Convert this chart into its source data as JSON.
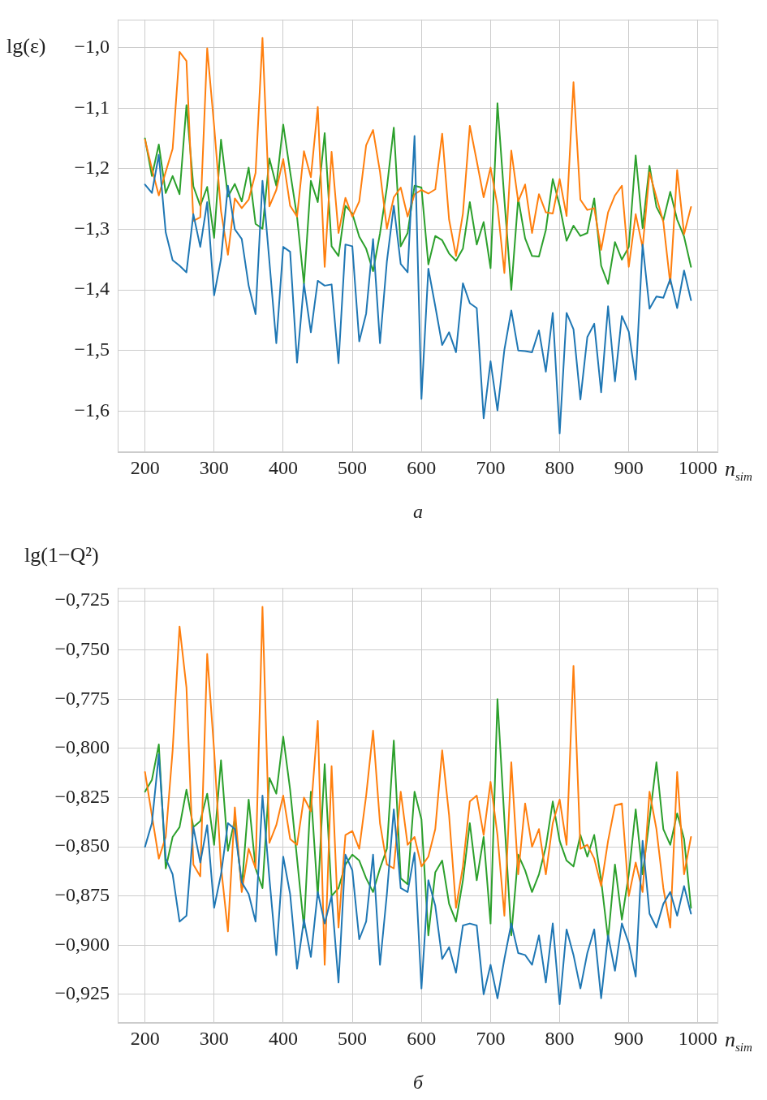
{
  "chart_data": [
    {
      "type": "line",
      "ylabel": "lg(ε)",
      "xlabel": "n$_{sim}$",
      "annotations": [
        "а"
      ],
      "grid": true,
      "marker": "none",
      "x": [
        200,
        210,
        220,
        230,
        240,
        250,
        260,
        270,
        280,
        290,
        300,
        310,
        320,
        330,
        340,
        350,
        360,
        370,
        380,
        390,
        400,
        410,
        420,
        430,
        440,
        450,
        460,
        470,
        480,
        490,
        500,
        510,
        520,
        530,
        540,
        550,
        560,
        570,
        580,
        590,
        600,
        610,
        620,
        630,
        640,
        650,
        660,
        670,
        680,
        690,
        700,
        710,
        720,
        730,
        740,
        750,
        760,
        770,
        780,
        790,
        800,
        810,
        820,
        830,
        840,
        850,
        860,
        870,
        880,
        890,
        900,
        910,
        920,
        930,
        940,
        950,
        960,
        970,
        980,
        990
      ],
      "xlim": [
        160.5,
        1029.5
      ],
      "xticks": [
        200,
        300,
        400,
        500,
        600,
        700,
        800,
        900,
        1000
      ],
      "ylim": [
        -1.668,
        -0.954
      ],
      "yticks": [
        {
          "value": -1.0,
          "label": "−1,0"
        },
        {
          "value": -1.1,
          "label": "−1,1"
        },
        {
          "value": -1.2,
          "label": "−1,2"
        },
        {
          "value": -1.3,
          "label": "−1,3"
        },
        {
          "value": -1.4,
          "label": "−1,4"
        },
        {
          "value": -1.5,
          "label": "−1,5"
        },
        {
          "value": -1.6,
          "label": "−1,6"
        }
      ],
      "series": [
        {
          "color": "#1f77b4",
          "values": [
            -1.226,
            -1.24,
            -1.177,
            -1.305,
            -1.351,
            -1.36,
            -1.371,
            -1.275,
            -1.329,
            -1.255,
            -1.409,
            -1.349,
            -1.228,
            -1.3,
            -1.316,
            -1.393,
            -1.44,
            -1.22,
            -1.353,
            -1.488,
            -1.329,
            -1.337,
            -1.52,
            -1.39,
            -1.47,
            -1.385,
            -1.393,
            -1.391,
            -1.521,
            -1.325,
            -1.328,
            -1.485,
            -1.439,
            -1.316,
            -1.488,
            -1.353,
            -1.261,
            -1.357,
            -1.371,
            -1.146,
            -1.58,
            -1.365,
            -1.427,
            -1.491,
            -1.47,
            -1.503,
            -1.389,
            -1.422,
            -1.43,
            -1.612,
            -1.518,
            -1.599,
            -1.499,
            -1.434,
            -1.5,
            -1.501,
            -1.503,
            -1.467,
            -1.535,
            -1.438,
            -1.637,
            -1.438,
            -1.465,
            -1.581,
            -1.478,
            -1.456,
            -1.569,
            -1.427,
            -1.551,
            -1.443,
            -1.469,
            -1.548,
            -1.325,
            -1.431,
            -1.411,
            -1.413,
            -1.382,
            -1.43,
            -1.368,
            -1.417
          ]
        },
        {
          "color": "#ff7f0e",
          "values": [
            -1.152,
            -1.2,
            -1.244,
            -1.205,
            -1.167,
            -1.007,
            -1.022,
            -1.286,
            -1.28,
            -1.001,
            -1.129,
            -1.27,
            -1.342,
            -1.249,
            -1.265,
            -1.251,
            -1.207,
            -0.984,
            -1.262,
            -1.235,
            -1.184,
            -1.261,
            -1.279,
            -1.171,
            -1.214,
            -1.098,
            -1.362,
            -1.172,
            -1.306,
            -1.248,
            -1.279,
            -1.254,
            -1.161,
            -1.136,
            -1.205,
            -1.299,
            -1.247,
            -1.231,
            -1.279,
            -1.242,
            -1.235,
            -1.241,
            -1.234,
            -1.142,
            -1.284,
            -1.344,
            -1.274,
            -1.129,
            -1.187,
            -1.247,
            -1.198,
            -1.261,
            -1.372,
            -1.17,
            -1.254,
            -1.226,
            -1.306,
            -1.242,
            -1.272,
            -1.274,
            -1.217,
            -1.278,
            -1.057,
            -1.251,
            -1.268,
            -1.265,
            -1.334,
            -1.272,
            -1.244,
            -1.228,
            -1.362,
            -1.275,
            -1.33,
            -1.206,
            -1.247,
            -1.288,
            -1.39,
            -1.202,
            -1.308,
            -1.263
          ]
        },
        {
          "color": "#2ca02c",
          "values": [
            -1.15,
            -1.212,
            -1.16,
            -1.24,
            -1.212,
            -1.242,
            -1.095,
            -1.229,
            -1.261,
            -1.23,
            -1.314,
            -1.152,
            -1.246,
            -1.225,
            -1.254,
            -1.198,
            -1.291,
            -1.299,
            -1.183,
            -1.228,
            -1.127,
            -1.205,
            -1.279,
            -1.39,
            -1.22,
            -1.255,
            -1.141,
            -1.328,
            -1.344,
            -1.261,
            -1.274,
            -1.312,
            -1.332,
            -1.369,
            -1.307,
            -1.231,
            -1.132,
            -1.328,
            -1.306,
            -1.228,
            -1.231,
            -1.358,
            -1.311,
            -1.318,
            -1.34,
            -1.352,
            -1.332,
            -1.255,
            -1.325,
            -1.288,
            -1.364,
            -1.092,
            -1.251,
            -1.4,
            -1.249,
            -1.315,
            -1.344,
            -1.345,
            -1.301,
            -1.217,
            -1.261,
            -1.319,
            -1.294,
            -1.311,
            -1.306,
            -1.249,
            -1.36,
            -1.39,
            -1.321,
            -1.35,
            -1.329,
            -1.178,
            -1.298,
            -1.195,
            -1.263,
            -1.285,
            -1.238,
            -1.284,
            -1.312,
            -1.362
          ]
        }
      ]
    },
    {
      "type": "line",
      "ylabel": "lg(1−Q²)",
      "xlabel": "n$_{sim}$",
      "annotations": [
        "б"
      ],
      "grid": true,
      "marker": "none",
      "x": [
        200,
        210,
        220,
        230,
        240,
        250,
        260,
        270,
        280,
        290,
        300,
        310,
        320,
        330,
        340,
        350,
        360,
        370,
        380,
        390,
        400,
        410,
        420,
        430,
        440,
        450,
        460,
        470,
        480,
        490,
        500,
        510,
        520,
        530,
        540,
        550,
        560,
        570,
        580,
        590,
        600,
        610,
        620,
        630,
        640,
        650,
        660,
        670,
        680,
        690,
        700,
        710,
        720,
        730,
        740,
        750,
        760,
        770,
        780,
        790,
        800,
        810,
        820,
        830,
        840,
        850,
        860,
        870,
        880,
        890,
        900,
        910,
        920,
        930,
        940,
        950,
        960,
        970,
        980,
        990
      ],
      "xlim": [
        160.5,
        1029.5
      ],
      "xticks": [
        200,
        300,
        400,
        500,
        600,
        700,
        800,
        900,
        1000
      ],
      "ylim": [
        -0.9395,
        -0.7185
      ],
      "yticks": [
        {
          "value": -0.725,
          "label": "−0,725"
        },
        {
          "value": -0.75,
          "label": "−0,750"
        },
        {
          "value": -0.775,
          "label": "−0,775"
        },
        {
          "value": -0.8,
          "label": "−0,800"
        },
        {
          "value": -0.825,
          "label": "−0,825"
        },
        {
          "value": -0.85,
          "label": "−0,850"
        },
        {
          "value": -0.875,
          "label": "−0,875"
        },
        {
          "value": -0.9,
          "label": "−0,900"
        },
        {
          "value": -0.925,
          "label": "−0,925"
        }
      ],
      "series": [
        {
          "color": "#1f77b4",
          "values": [
            -0.85,
            -0.838,
            -0.803,
            -0.856,
            -0.864,
            -0.888,
            -0.885,
            -0.84,
            -0.858,
            -0.839,
            -0.881,
            -0.864,
            -0.838,
            -0.841,
            -0.868,
            -0.874,
            -0.888,
            -0.824,
            -0.866,
            -0.905,
            -0.855,
            -0.874,
            -0.912,
            -0.887,
            -0.906,
            -0.873,
            -0.889,
            -0.875,
            -0.919,
            -0.854,
            -0.862,
            -0.897,
            -0.888,
            -0.854,
            -0.91,
            -0.874,
            -0.831,
            -0.871,
            -0.873,
            -0.853,
            -0.922,
            -0.867,
            -0.88,
            -0.907,
            -0.901,
            -0.914,
            -0.89,
            -0.889,
            -0.89,
            -0.925,
            -0.91,
            -0.927,
            -0.907,
            -0.889,
            -0.904,
            -0.905,
            -0.91,
            -0.895,
            -0.919,
            -0.889,
            -0.93,
            -0.892,
            -0.905,
            -0.922,
            -0.904,
            -0.892,
            -0.927,
            -0.895,
            -0.913,
            -0.889,
            -0.899,
            -0.916,
            -0.847,
            -0.884,
            -0.891,
            -0.879,
            -0.873,
            -0.885,
            -0.87,
            -0.884
          ]
        },
        {
          "color": "#ff7f0e",
          "values": [
            -0.812,
            -0.834,
            -0.856,
            -0.845,
            -0.801,
            -0.738,
            -0.769,
            -0.859,
            -0.865,
            -0.752,
            -0.801,
            -0.86,
            -0.893,
            -0.83,
            -0.873,
            -0.851,
            -0.861,
            -0.728,
            -0.848,
            -0.839,
            -0.824,
            -0.846,
            -0.849,
            -0.825,
            -0.832,
            -0.786,
            -0.91,
            -0.809,
            -0.891,
            -0.844,
            -0.842,
            -0.851,
            -0.824,
            -0.791,
            -0.838,
            -0.859,
            -0.861,
            -0.822,
            -0.849,
            -0.845,
            -0.86,
            -0.855,
            -0.841,
            -0.801,
            -0.834,
            -0.881,
            -0.86,
            -0.827,
            -0.824,
            -0.844,
            -0.817,
            -0.844,
            -0.885,
            -0.807,
            -0.864,
            -0.828,
            -0.85,
            -0.841,
            -0.864,
            -0.838,
            -0.826,
            -0.849,
            -0.758,
            -0.851,
            -0.849,
            -0.856,
            -0.87,
            -0.847,
            -0.829,
            -0.828,
            -0.875,
            -0.858,
            -0.873,
            -0.822,
            -0.841,
            -0.871,
            -0.891,
            -0.812,
            -0.864,
            -0.845
          ]
        },
        {
          "color": "#2ca02c",
          "values": [
            -0.822,
            -0.816,
            -0.798,
            -0.861,
            -0.845,
            -0.84,
            -0.821,
            -0.84,
            -0.837,
            -0.823,
            -0.849,
            -0.806,
            -0.852,
            -0.836,
            -0.871,
            -0.826,
            -0.861,
            -0.871,
            -0.815,
            -0.823,
            -0.794,
            -0.821,
            -0.856,
            -0.891,
            -0.822,
            -0.875,
            -0.808,
            -0.875,
            -0.871,
            -0.859,
            -0.854,
            -0.857,
            -0.866,
            -0.873,
            -0.861,
            -0.851,
            -0.796,
            -0.866,
            -0.869,
            -0.822,
            -0.836,
            -0.895,
            -0.863,
            -0.857,
            -0.879,
            -0.888,
            -0.867,
            -0.838,
            -0.867,
            -0.845,
            -0.889,
            -0.775,
            -0.836,
            -0.895,
            -0.854,
            -0.862,
            -0.873,
            -0.864,
            -0.85,
            -0.827,
            -0.847,
            -0.857,
            -0.86,
            -0.844,
            -0.855,
            -0.844,
            -0.867,
            -0.897,
            -0.859,
            -0.887,
            -0.864,
            -0.831,
            -0.864,
            -0.836,
            -0.807,
            -0.841,
            -0.849,
            -0.833,
            -0.846,
            -0.881
          ]
        }
      ]
    }
  ]
}
